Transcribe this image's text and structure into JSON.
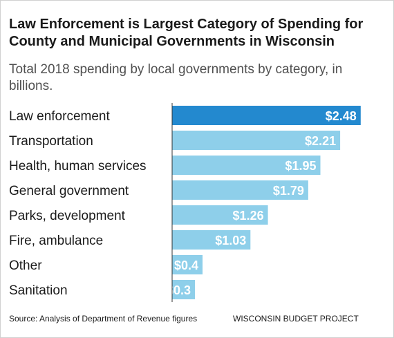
{
  "title": "Law Enforcement is Largest Category of Spending for County and Municipal Governments in Wisconsin",
  "subtitle": "Total 2018 spending by local governments by category, in billions.",
  "source": "Source: Analysis of Department of Revenue figures",
  "credit": "WISCONSIN BUDGET PROJECT",
  "colors": {
    "highlight": "#2389cf",
    "bar": "#8ecfea",
    "axis": "#333333"
  },
  "chart_data": {
    "type": "bar",
    "orientation": "horizontal",
    "categories": [
      "Law enforcement",
      "Transportation",
      "Health, human services",
      "General government",
      "Parks, development",
      "Fire, ambulance",
      "Other",
      "Sanitation"
    ],
    "values": [
      2.48,
      2.21,
      1.95,
      1.79,
      1.26,
      1.03,
      0.4,
      0.3
    ],
    "value_labels": [
      "$2.48",
      "$2.21",
      "$1.95",
      "$1.79",
      "$1.26",
      "$1.03",
      "$0.4",
      "$0.3"
    ],
    "highlight_index": 0,
    "xlim": [
      0,
      2.6
    ],
    "grid": false
  }
}
